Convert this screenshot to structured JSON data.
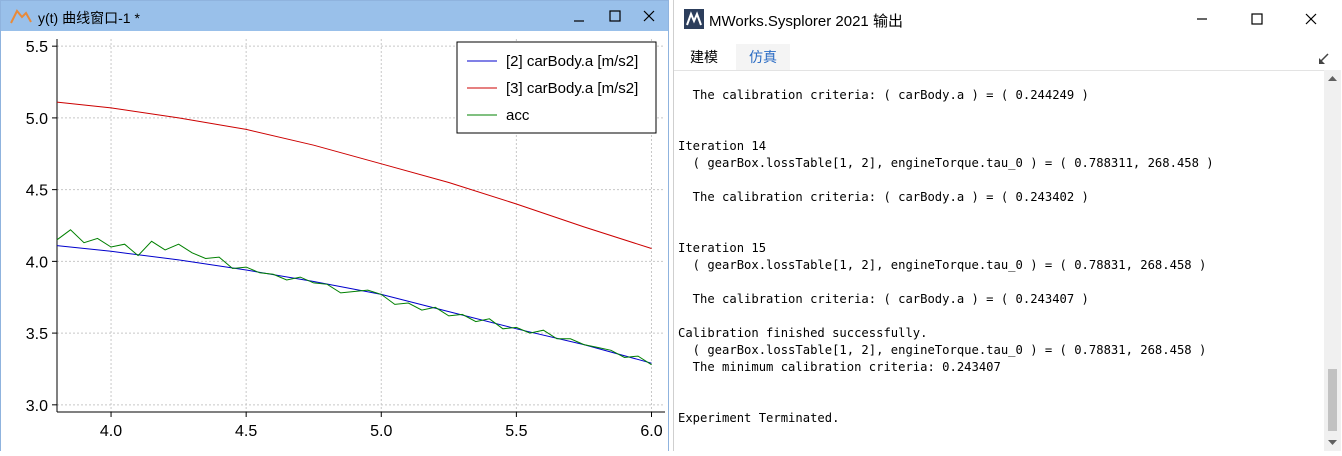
{
  "plot_window": {
    "title": "y(t) 曲线窗口-1 *",
    "icon": "chart-curve-icon",
    "controls": [
      "close-icon",
      "maximize-icon",
      "minimize-icon"
    ]
  },
  "output_window": {
    "title": "MWorks.Sysplorer 2021 输出",
    "logo": "mworks-logo-icon",
    "tabs": [
      {
        "label": "建模",
        "active": false
      },
      {
        "label": "仿真",
        "active": true
      }
    ],
    "lines": [
      "  The calibration criteria: ( carBody.a ) = ( 0.244249 )",
      "",
      "",
      "Iteration 14",
      "  ( gearBox.lossTable[1, 2], engineTorque.tau_0 ) = ( 0.788311, 268.458 )",
      "",
      "  The calibration criteria: ( carBody.a ) = ( 0.243402 )",
      "",
      "",
      "Iteration 15",
      "  ( gearBox.lossTable[1, 2], engineTorque.tau_0 ) = ( 0.78831, 268.458 )",
      "",
      "  The calibration criteria: ( carBody.a ) = ( 0.243407 )",
      "",
      "Calibration finished successfully.",
      "  ( gearBox.lossTable[1, 2], engineTorque.tau_0 ) = ( 0.78831, 268.458 )",
      "  The minimum calibration criteria: 0.243407",
      "",
      "",
      "Experiment Terminated."
    ]
  },
  "chart_data": {
    "type": "line",
    "xlim": [
      3.8,
      6.05
    ],
    "ylim": [
      2.95,
      5.55
    ],
    "xticks": [
      "4.0",
      "4.5",
      "5.0",
      "5.5",
      "6.0"
    ],
    "yticks": [
      "3.0",
      "3.5",
      "4.0",
      "4.5",
      "5.0",
      "5.5"
    ],
    "grid": true,
    "legend_position": "top-right",
    "series": [
      {
        "name": "[2] carBody.a [m/s2]",
        "color": "#0000cc",
        "x": [
          3.8,
          4.0,
          4.25,
          4.5,
          4.75,
          5.0,
          5.25,
          5.5,
          5.75,
          6.0
        ],
        "y": [
          4.11,
          4.07,
          4.01,
          3.94,
          3.86,
          3.77,
          3.65,
          3.53,
          3.42,
          3.29
        ]
      },
      {
        "name": "[3] carBody.a [m/s2]",
        "color": "#cc0000",
        "x": [
          3.8,
          4.0,
          4.25,
          4.5,
          4.75,
          5.0,
          5.25,
          5.5,
          5.75,
          6.0
        ],
        "y": [
          5.11,
          5.07,
          5.0,
          4.92,
          4.81,
          4.68,
          4.55,
          4.4,
          4.24,
          4.09
        ]
      },
      {
        "name": "acc",
        "color": "#008000",
        "x": [
          3.8,
          3.85,
          3.9,
          3.95,
          4.0,
          4.05,
          4.1,
          4.15,
          4.2,
          4.25,
          4.3,
          4.35,
          4.4,
          4.45,
          4.5,
          4.55,
          4.6,
          4.65,
          4.7,
          4.75,
          4.8,
          4.85,
          4.9,
          4.95,
          5.0,
          5.05,
          5.1,
          5.15,
          5.2,
          5.25,
          5.3,
          5.35,
          5.4,
          5.45,
          5.5,
          5.55,
          5.6,
          5.65,
          5.7,
          5.75,
          5.8,
          5.85,
          5.9,
          5.95,
          6.0
        ],
        "y": [
          4.15,
          4.22,
          4.13,
          4.16,
          4.1,
          4.12,
          4.04,
          4.14,
          4.08,
          4.12,
          4.06,
          4.02,
          4.03,
          3.95,
          3.96,
          3.92,
          3.91,
          3.87,
          3.89,
          3.85,
          3.84,
          3.78,
          3.79,
          3.8,
          3.77,
          3.7,
          3.71,
          3.66,
          3.68,
          3.62,
          3.63,
          3.58,
          3.6,
          3.53,
          3.54,
          3.5,
          3.52,
          3.46,
          3.46,
          3.42,
          3.4,
          3.38,
          3.33,
          3.34,
          3.28
        ]
      }
    ]
  }
}
